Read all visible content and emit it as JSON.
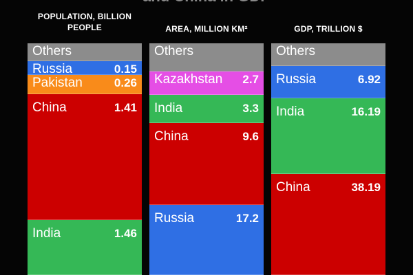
{
  "page": {
    "title": "and China in GDP"
  },
  "colors": {
    "others": "#8c8c8c",
    "russia": "#2f6fe4",
    "pakistan": "#f98b1a",
    "china": "#cc0000",
    "india": "#35b856",
    "kazakhstan": "#e54ee5",
    "background": "#050505"
  },
  "chart_data": [
    {
      "type": "bar",
      "stacked": true,
      "title": "POPULATION, BILLION PEOPLE",
      "segments": [
        {
          "label": "India",
          "value": 1.46,
          "value_text": "1.46",
          "color": "#35b856"
        },
        {
          "label": "China",
          "value": 1.41,
          "value_text": "1.41",
          "color": "#cc0000"
        },
        {
          "label": "Pakistan",
          "value": 0.26,
          "value_text": "0.26",
          "color": "#f98b1a"
        },
        {
          "label": "Russia",
          "value": 0.15,
          "value_text": "0.15",
          "color": "#2f6fe4"
        },
        {
          "label": "Others",
          "value": null,
          "value_text": "",
          "color": "#8c8c8c"
        }
      ]
    },
    {
      "type": "bar",
      "stacked": true,
      "title": "AREA, MILLION KM²",
      "segments": [
        {
          "label": "Russia",
          "value": 17.2,
          "value_text": "17.2",
          "color": "#2f6fe4"
        },
        {
          "label": "China",
          "value": 9.6,
          "value_text": "9.6",
          "color": "#cc0000"
        },
        {
          "label": "India",
          "value": 3.3,
          "value_text": "3.3",
          "color": "#35b856"
        },
        {
          "label": "Kazakhstan",
          "value": 2.7,
          "value_text": "2.7",
          "color": "#e54ee5"
        },
        {
          "label": "Others",
          "value": null,
          "value_text": "",
          "color": "#8c8c8c"
        }
      ]
    },
    {
      "type": "bar",
      "stacked": true,
      "title": "GDP, TRILLION $",
      "segments": [
        {
          "label": "China",
          "value": 38.19,
          "value_text": "38.19",
          "color": "#cc0000"
        },
        {
          "label": "India",
          "value": 16.19,
          "value_text": "16.19",
          "color": "#35b856"
        },
        {
          "label": "Russia",
          "value": 6.92,
          "value_text": "6.92",
          "color": "#2f6fe4"
        },
        {
          "label": "Others",
          "value": null,
          "value_text": "",
          "color": "#8c8c8c"
        }
      ]
    }
  ]
}
